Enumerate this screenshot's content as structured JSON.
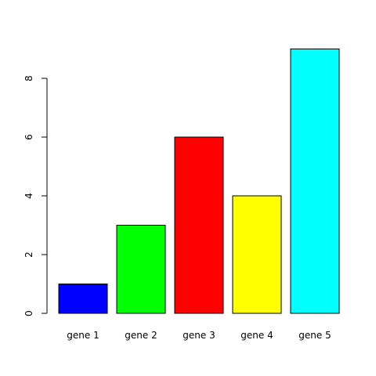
{
  "chart_data": {
    "type": "bar",
    "categories": [
      "gene 1",
      "gene 2",
      "gene 3",
      "gene 4",
      "gene 5"
    ],
    "values": [
      1,
      3,
      6,
      4,
      9
    ],
    "colors": [
      "#0000ff",
      "#00ff00",
      "#ff0000",
      "#ffff00",
      "#00ffff"
    ],
    "y_ticks": [
      0,
      2,
      4,
      6,
      8
    ],
    "ylim": [
      0,
      9
    ],
    "title": "",
    "xlabel": "",
    "ylabel": "",
    "grid": false,
    "legend": "none"
  }
}
